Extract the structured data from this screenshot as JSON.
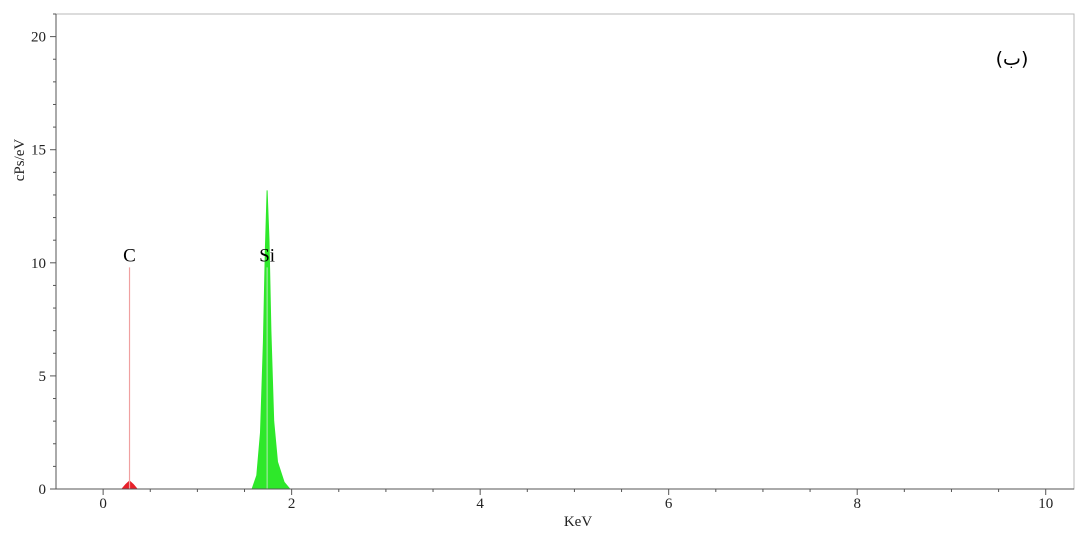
{
  "chart_data": {
    "type": "area",
    "panel_label": "(ب)",
    "xlabel": "KeV",
    "ylabel": "cPs/eV",
    "xlim": [
      -0.5,
      10.3
    ],
    "ylim": [
      0,
      21
    ],
    "x_ticks": [
      0,
      2,
      4,
      6,
      8,
      10
    ],
    "y_ticks": [
      0,
      5,
      10,
      15,
      20
    ],
    "grid": false,
    "series": [
      {
        "name": "C",
        "color": "#e8202a",
        "points": [
          [
            0.2,
            0
          ],
          [
            0.24,
            0.2
          ],
          [
            0.28,
            0.35
          ],
          [
            0.32,
            0.2
          ],
          [
            0.36,
            0
          ]
        ]
      },
      {
        "name": "Si",
        "color": "#2ee82a",
        "points": [
          [
            1.58,
            0
          ],
          [
            1.63,
            0.6
          ],
          [
            1.67,
            2.5
          ],
          [
            1.7,
            6.5
          ],
          [
            1.72,
            10.5
          ],
          [
            1.74,
            13.2
          ],
          [
            1.76,
            11
          ],
          [
            1.78,
            7
          ],
          [
            1.81,
            3
          ],
          [
            1.85,
            1.2
          ],
          [
            1.92,
            0.3
          ],
          [
            1.98,
            0
          ]
        ]
      }
    ],
    "element_markers": [
      {
        "label": "C",
        "x": 0.28,
        "y": 9.8,
        "color": "#f0a0a0"
      },
      {
        "label": "Si",
        "x": 1.74,
        "y": 9.8,
        "color": "#a0e8a0"
      }
    ]
  }
}
